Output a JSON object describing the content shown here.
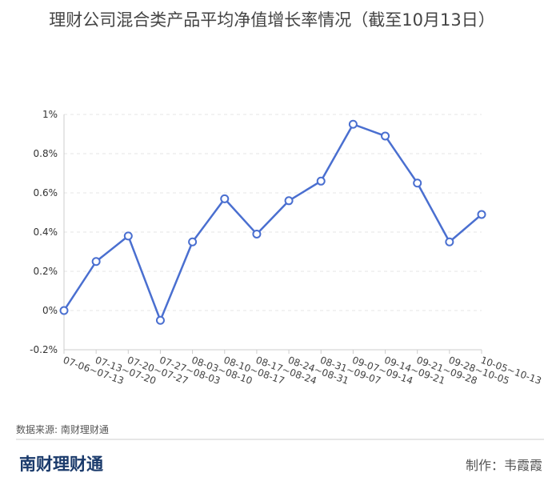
{
  "chart_data": {
    "type": "line",
    "title": "理财公司混合类产品平均净值增长率情况（截至10月13日）",
    "categories": [
      "07-06~07-13",
      "07-13~07-20",
      "07-20~07-27",
      "07-27~08-03",
      "08-03~08-10",
      "08-10~08-17",
      "08-17~08-24",
      "08-24~08-31",
      "08-31~09-07",
      "09-07~09-14",
      "09-14~09-21",
      "09-21~09-28",
      "09-28~10-05",
      "10-05~10-13"
    ],
    "values": [
      0,
      0.25,
      0.38,
      -0.05,
      0.35,
      0.57,
      0.39,
      0.56,
      0.66,
      0.95,
      0.89,
      0.65,
      0.35,
      0.49
    ],
    "color": "#4a6fd0",
    "ylim": [
      -0.2,
      1
    ],
    "yticks": [
      {
        "value": -0.2,
        "label": "-0.2%"
      },
      {
        "value": 0,
        "label": "0%"
      },
      {
        "value": 0.2,
        "label": "0.2%"
      },
      {
        "value": 0.4,
        "label": "0.4%"
      },
      {
        "value": 0.6,
        "label": "0.6%"
      },
      {
        "value": 0.8,
        "label": "0.8%"
      },
      {
        "value": 1,
        "label": "1%"
      }
    ],
    "grid": true
  },
  "source": "数据来源: 南财理财通",
  "logo": "南财理财通",
  "credit": "制作：韦霞霞"
}
